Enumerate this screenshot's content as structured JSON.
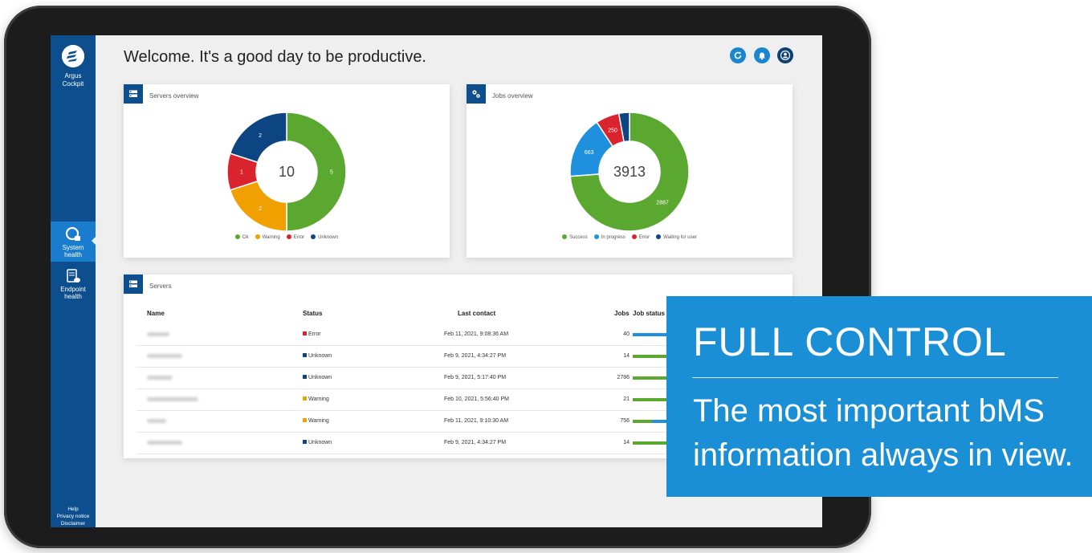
{
  "app": {
    "brand": [
      "Argus",
      "Cockpit"
    ],
    "welcome": "Welcome. It's a good day to be productive."
  },
  "topbar": {
    "icons": [
      "refresh-icon",
      "bell-icon",
      "user-icon"
    ],
    "colors": [
      "#1a86d0",
      "#1a86d0",
      "#0d3f78"
    ]
  },
  "sidebar": {
    "items": [
      {
        "label": [
          "System",
          "health"
        ],
        "icon": "system-health-icon",
        "active": true
      },
      {
        "label": [
          "Endpoint",
          "health"
        ],
        "icon": "endpoint-health-icon",
        "active": false
      }
    ],
    "footer": [
      "Help",
      "Privacy notice",
      "Disclaimer"
    ]
  },
  "servers_overview": {
    "title": "Servers overview",
    "total": "10",
    "chart_data": {
      "type": "pie",
      "categories": [
        "Ok",
        "Warning",
        "Error",
        "Unknown"
      ],
      "values": [
        5,
        2,
        1,
        2
      ],
      "colors": [
        "#5aa830",
        "#f0a000",
        "#d9232d",
        "#0d4582"
      ],
      "legend": "bottom"
    }
  },
  "jobs_overview": {
    "title": "Jobs overview",
    "total": "3913",
    "chart_data": {
      "type": "pie",
      "categories": [
        "Success",
        "In progress",
        "Error",
        "Waiting for user"
      ],
      "values": [
        2887,
        663,
        250,
        113
      ],
      "labels": [
        "2887",
        "663",
        "250",
        ""
      ],
      "colors": [
        "#5aa830",
        "#1e90dd",
        "#d9232d",
        "#0d4582"
      ],
      "legend": "bottom"
    }
  },
  "servers_table": {
    "title": "Servers",
    "columns": {
      "name": "Name",
      "status": "Status",
      "last_contact": "Last contact",
      "jobs": "Jobs",
      "job_status": "Job status"
    },
    "rows": [
      {
        "status": "Error",
        "status_color": "#d9232d",
        "last_contact": "Feb 11, 2021, 9:08:36 AM",
        "jobs": "40",
        "bar": [
          0.0,
          1.0
        ]
      },
      {
        "status": "Unknown",
        "status_color": "#0d4582",
        "last_contact": "Feb 9, 2021, 4:34:27 PM",
        "jobs": "14",
        "bar": [
          1.0,
          0.0
        ]
      },
      {
        "status": "Unknown",
        "status_color": "#0d4582",
        "last_contact": "Feb 9, 2021, 5:17:40 PM",
        "jobs": "2786",
        "bar": [
          1.0,
          0.0
        ]
      },
      {
        "status": "Warning",
        "status_color": "#f0a000",
        "last_contact": "Feb 10, 2021, 5:56:40 PM",
        "jobs": "21",
        "bar": [
          0.4,
          0.6
        ]
      },
      {
        "status": "Warning",
        "status_color": "#f0a000",
        "last_contact": "Feb 11, 2021, 9:10:30 AM",
        "jobs": "756",
        "bar": [
          0.2,
          0.8
        ]
      },
      {
        "status": "Unknown",
        "status_color": "#0d4582",
        "last_contact": "Feb 9, 2021, 4:34:27 PM",
        "jobs": "14",
        "bar": [
          1.0,
          0.0
        ]
      }
    ]
  },
  "promo": {
    "title": "FULL CONTROL",
    "subtitle_lines": [
      "The most important bMS",
      "information always in view."
    ]
  }
}
